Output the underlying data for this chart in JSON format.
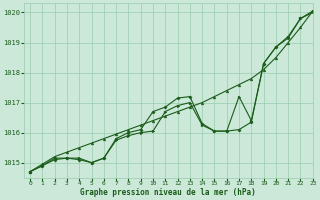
{
  "background_color": "#cce8d8",
  "grid_color": "#99ccb0",
  "line_color": "#1a5c1a",
  "xlabel": "Graphe pression niveau de la mer (hPa)",
  "xlim": [
    -0.5,
    23
  ],
  "ylim": [
    1014.5,
    1020.3
  ],
  "yticks": [
    1015,
    1016,
    1017,
    1018,
    1019,
    1020
  ],
  "xticks": [
    0,
    1,
    2,
    3,
    4,
    5,
    6,
    7,
    8,
    9,
    10,
    11,
    12,
    13,
    14,
    15,
    16,
    17,
    18,
    19,
    20,
    21,
    22,
    23
  ],
  "series1_x": [
    0,
    1,
    2,
    3,
    4,
    5,
    6,
    7,
    8,
    9,
    10,
    11,
    12,
    13,
    14,
    15,
    16,
    17,
    18,
    19,
    20,
    21,
    22,
    23
  ],
  "series1_y": [
    1014.7,
    1014.95,
    1015.2,
    1015.35,
    1015.5,
    1015.65,
    1015.8,
    1015.95,
    1016.1,
    1016.25,
    1016.4,
    1016.55,
    1016.7,
    1016.85,
    1017.0,
    1017.2,
    1017.4,
    1017.6,
    1017.8,
    1018.1,
    1018.5,
    1019.0,
    1019.5,
    1020.05
  ],
  "series2_x": [
    0,
    1,
    2,
    3,
    4,
    5,
    6,
    7,
    8,
    9,
    10,
    11,
    12,
    13,
    14,
    15,
    16,
    17,
    18,
    19,
    20,
    21,
    22,
    23
  ],
  "series2_y": [
    1014.7,
    1014.9,
    1015.1,
    1015.15,
    1015.1,
    1015.0,
    1015.15,
    1015.8,
    1016.0,
    1016.1,
    1016.7,
    1016.85,
    1017.15,
    1017.2,
    1016.3,
    1016.05,
    1016.05,
    1016.1,
    1016.35,
    1018.3,
    1018.85,
    1019.15,
    1019.8,
    1020.0
  ],
  "series3_x": [
    0,
    1,
    2,
    3,
    4,
    5,
    6,
    7,
    8,
    9,
    10,
    11,
    12,
    13,
    14,
    15,
    16,
    17,
    18,
    19,
    20,
    21,
    22,
    23
  ],
  "series3_y": [
    1014.7,
    1014.9,
    1015.15,
    1015.15,
    1015.15,
    1015.0,
    1015.15,
    1015.75,
    1015.9,
    1016.0,
    1016.05,
    1016.7,
    1016.9,
    1017.0,
    1016.25,
    1016.05,
    1016.05,
    1017.2,
    1016.4,
    1018.3,
    1018.85,
    1019.2,
    1019.8,
    1020.05
  ]
}
